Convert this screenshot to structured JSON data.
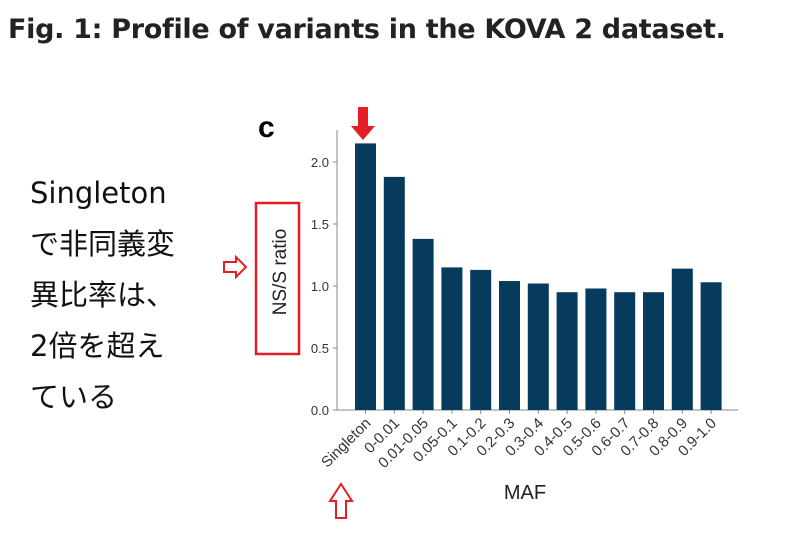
{
  "figure_title": "Fig. 1: Profile of variants in the KOVA 2 dataset.",
  "annotation_lines": [
    "Singleton",
    "で非同義変",
    "異比率は、",
    "2倍を超え",
    "ている"
  ],
  "colors": {
    "bar": "#073b5e",
    "highlight": "#e31e24"
  },
  "chart_data": {
    "type": "bar",
    "panel_label": "c",
    "title": "",
    "xlabel": "MAF",
    "ylabel": "NS/S ratio",
    "ylim": [
      0,
      2.25
    ],
    "yticks": [
      "0.0",
      "0.5",
      "1.0",
      "1.5",
      "2.0"
    ],
    "grid": false,
    "categories": [
      "Singleton",
      "0-0.01",
      "0.01-0.05",
      "0.05-0.1",
      "0.1-0.2",
      "0.2-0.3",
      "0.3-0.4",
      "0.4-0.5",
      "0.5-0.6",
      "0.6-0.7",
      "0.7-0.8",
      "0.8-0.9",
      "0.9-1.0"
    ],
    "values": [
      2.15,
      1.88,
      1.38,
      1.15,
      1.13,
      1.04,
      1.02,
      0.95,
      0.98,
      0.95,
      0.95,
      1.14,
      1.03
    ]
  }
}
